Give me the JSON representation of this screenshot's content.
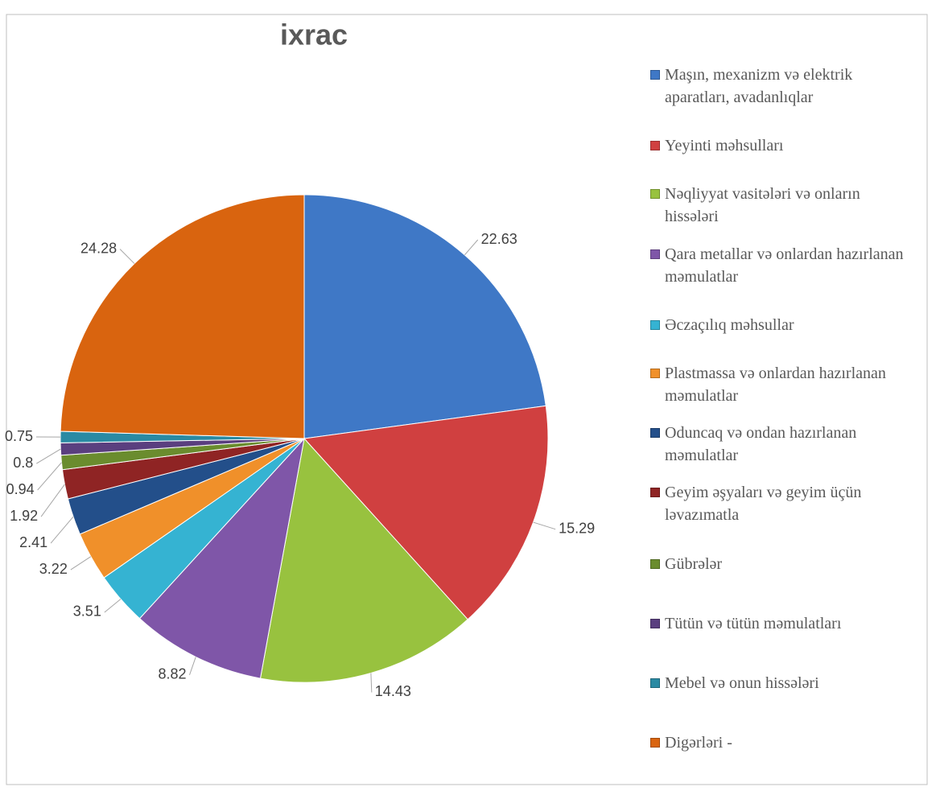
{
  "chart_data": {
    "type": "pie",
    "title": "ixrac",
    "categories": [
      "Maşın, mexanizm və elektrik aparatları, avadanlıqlar",
      "Yeyinti məhsulları",
      "Nəqliyyat vasitələri və onların hissələri",
      "Qara metallar və onlardan hazırlanan məmulatlar",
      "Əczaçılıq məhsullar",
      "Plastmassa və onlardan hazırlanan məmulatlar",
      "Oduncaq və ondan hazırlanan məmulatlar",
      "Geyim əşyaları və geyim üçün ləvazımatla",
      "Gübrələr",
      "Tütün və tütün məmulatları",
      "Mebel və onun hissələri",
      "Digərləri -"
    ],
    "values": [
      22.63,
      15.29,
      14.43,
      8.82,
      3.51,
      3.22,
      2.41,
      1.92,
      0.94,
      0.8,
      0.75,
      24.28
    ],
    "colors": [
      "#3f78c6",
      "#d04040",
      "#98c23f",
      "#7f56a8",
      "#35b3d2",
      "#f0902a",
      "#234f8a",
      "#8f2424",
      "#6a8c2e",
      "#5a3f7f",
      "#2a8aa3",
      "#d9640f"
    ],
    "legend": "right"
  }
}
